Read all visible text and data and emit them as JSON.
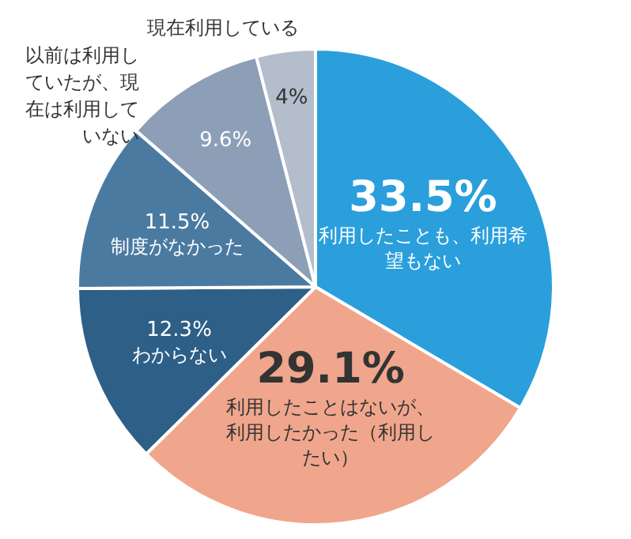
{
  "chart_data": {
    "type": "pie",
    "categories": [
      "利用したことも、利用希望もない",
      "利用したことはないが、利用したかった（利用したい）",
      "わからない",
      "制度がなかった",
      "以前は利用していたが、現在は利用していない",
      "現在利用している"
    ],
    "values": [
      33.5,
      29.1,
      12.3,
      11.5,
      9.6,
      4
    ],
    "value_labels": [
      "33.5%",
      "29.1%",
      "12.3%",
      "11.5%",
      "9.6%",
      "4%"
    ],
    "colors": [
      "#2a9fdc",
      "#f0a68c",
      "#2d5f87",
      "#4b7aa1",
      "#8c9fb7",
      "#b4bdcc"
    ],
    "legend": false
  }
}
